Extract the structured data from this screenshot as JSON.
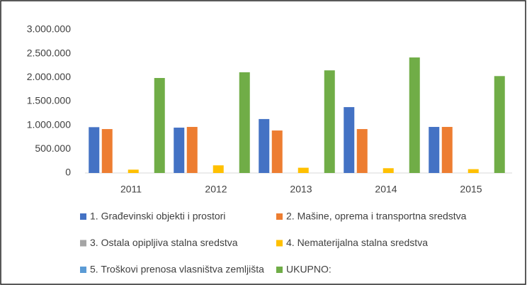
{
  "chart_data": {
    "type": "bar",
    "categories": [
      "2011",
      "2012",
      "2013",
      "2014",
      "2015"
    ],
    "series": [
      {
        "name": "1. Građevinski objekti i prostori",
        "color": "#4472c4",
        "values": [
          960000,
          950000,
          1130000,
          1380000,
          965000
        ]
      },
      {
        "name": "2. Mašine, oprema i transportna sredstva",
        "color": "#ed7d31",
        "values": [
          920000,
          965000,
          890000,
          920000,
          965000
        ]
      },
      {
        "name": "3. Ostala opipljiva stalna sredstva",
        "color": "#a5a5a5",
        "values": [
          0,
          0,
          0,
          0,
          0
        ]
      },
      {
        "name": "4. Nematerijalna stalna sredstva",
        "color": "#ffc000",
        "values": [
          70000,
          160000,
          110000,
          100000,
          80000
        ]
      },
      {
        "name": "5. Troškovi prenosa vlasništva zemljišta",
        "color": "#5b9bd5",
        "values": [
          0,
          0,
          0,
          0,
          0
        ]
      },
      {
        "name": "UKUPNO:",
        "color": "#70ad47",
        "values": [
          1990000,
          2110000,
          2150000,
          2420000,
          2030000
        ]
      }
    ],
    "ylim": [
      0,
      3000000
    ],
    "yticks": [
      0,
      {
        "value": 500000,
        "label": "500.000"
      },
      {
        "value": 1000000,
        "label": "1.000.000"
      },
      {
        "value": 1500000,
        "label": "1.500.000"
      },
      {
        "value": 2000000,
        "label": "2.000.000"
      },
      {
        "value": 2500000,
        "label": "2.500.000"
      },
      {
        "value": 3000000,
        "label": "3.000.000"
      }
    ],
    "grid": false
  }
}
